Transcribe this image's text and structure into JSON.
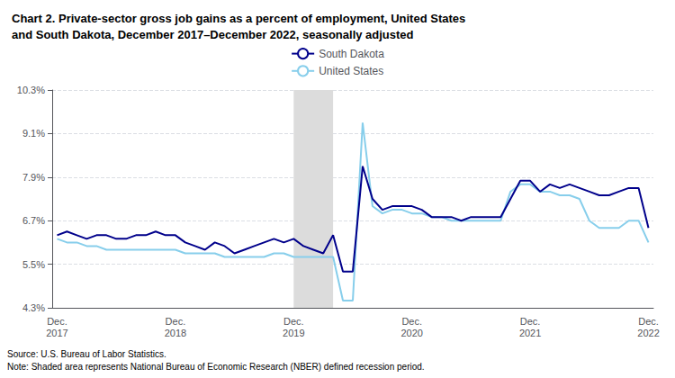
{
  "chart_data": {
    "type": "line",
    "title": "Chart 2. Private-sector gross job gains as a percent of employment, United States\nand South Dakota, December 2017–December 2022, seasonally adjusted",
    "annotations": [
      "Source: U.S. Bureau of Labor Statistics.\nNote: Shaded area represents National Bureau of Economic Research (NBER) defined recession period."
    ],
    "categories": [
      "Dec.\n2017",
      null,
      null,
      null,
      null,
      null,
      null,
      null,
      null,
      null,
      null,
      null,
      "Dec.\n2018",
      null,
      null,
      null,
      null,
      null,
      null,
      null,
      null,
      null,
      null,
      null,
      "Dec.\n2019",
      null,
      null,
      null,
      null,
      null,
      null,
      null,
      null,
      null,
      null,
      null,
      "Dec.\n2020",
      null,
      null,
      null,
      null,
      null,
      null,
      null,
      null,
      null,
      null,
      null,
      "Dec.\n2021",
      null,
      null,
      null,
      null,
      null,
      null,
      null,
      null,
      null,
      null,
      null,
      "Dec.\n2022"
    ],
    "series": [
      {
        "name": "United States",
        "color": "#87CEEB",
        "values": [
          6.2,
          6.1,
          6.1,
          6.0,
          6.0,
          5.9,
          5.9,
          5.9,
          5.9,
          5.9,
          5.9,
          5.9,
          5.9,
          5.8,
          5.8,
          5.8,
          5.8,
          5.7,
          5.7,
          5.7,
          5.7,
          5.7,
          5.8,
          5.8,
          5.7,
          5.7,
          5.7,
          5.7,
          5.7,
          4.5,
          4.5,
          9.4,
          7.1,
          6.9,
          7.0,
          7.0,
          6.9,
          6.9,
          6.8,
          6.8,
          6.7,
          6.7,
          6.7,
          6.7,
          6.7,
          6.7,
          7.5,
          7.7,
          7.7,
          7.5,
          7.5,
          7.4,
          7.4,
          7.3,
          6.7,
          6.5,
          6.5,
          6.5,
          6.7,
          6.7,
          6.1
        ]
      },
      {
        "name": "South Dakota",
        "color": "#00008B",
        "values": [
          6.3,
          6.4,
          6.3,
          6.2,
          6.3,
          6.3,
          6.2,
          6.2,
          6.3,
          6.3,
          6.4,
          6.3,
          6.3,
          6.1,
          6.0,
          5.9,
          6.1,
          6.0,
          5.8,
          5.9,
          6.0,
          6.1,
          6.2,
          6.1,
          6.2,
          6.0,
          5.9,
          5.8,
          6.3,
          5.3,
          5.3,
          8.2,
          7.3,
          7.0,
          7.1,
          7.1,
          7.1,
          7.0,
          6.8,
          6.8,
          6.8,
          6.7,
          6.8,
          6.8,
          6.8,
          6.8,
          7.3,
          7.8,
          7.8,
          7.5,
          7.7,
          7.6,
          7.7,
          7.6,
          7.5,
          7.4,
          7.4,
          7.5,
          7.6,
          7.6,
          6.5
        ]
      }
    ],
    "shaded": {
      "from": 24,
      "to": 28,
      "color": "#DCDCDC"
    },
    "ylim": [
      4.3,
      10.3
    ],
    "yticks": [
      {
        "value": 4.3,
        "label": "4.3%"
      },
      {
        "value": 5.5,
        "label": "5.5%"
      },
      {
        "value": 6.7,
        "label": "6.7%"
      },
      {
        "value": 7.9,
        "label": "7.9%"
      },
      {
        "value": 9.1,
        "label": "9.1%"
      },
      {
        "value": 10.3,
        "label": "10.3%"
      }
    ],
    "grid": true,
    "legend": "top"
  }
}
